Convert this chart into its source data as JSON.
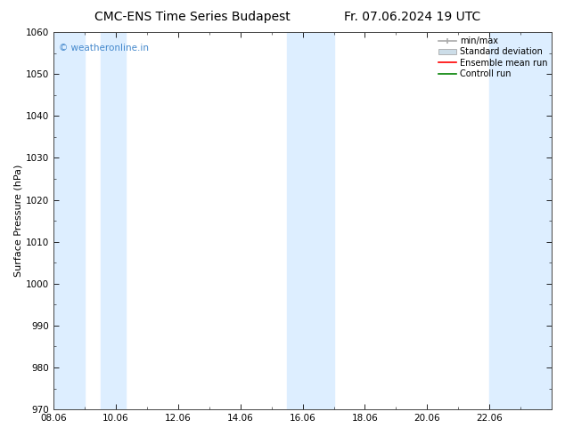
{
  "title_left": "CMC-ENS Time Series Budapest",
  "title_right": "Fr. 07.06.2024 19 UTC",
  "ylabel": "Surface Pressure (hPa)",
  "ylim": [
    970,
    1060
  ],
  "yticks": [
    970,
    980,
    990,
    1000,
    1010,
    1020,
    1030,
    1040,
    1050,
    1060
  ],
  "xlim": [
    0,
    16
  ],
  "xtick_labels": [
    "08.06",
    "10.06",
    "12.06",
    "14.06",
    "16.06",
    "18.06",
    "20.06",
    "22.06"
  ],
  "xtick_positions": [
    0,
    2,
    4,
    6,
    8,
    10,
    12,
    14
  ],
  "watermark": "© weatheronline.in",
  "watermark_color": "#4488cc",
  "shaded_bands": [
    {
      "x_start": 0.0,
      "x_end": 1.0
    },
    {
      "x_start": 1.5,
      "x_end": 2.5
    },
    {
      "x_start": 7.5,
      "x_end": 8.5
    },
    {
      "x_start": 8.5,
      "x_end": 9.5
    },
    {
      "x_start": 14.0,
      "x_end": 15.0
    },
    {
      "x_start": 15.0,
      "x_end": 16.0
    }
  ],
  "band_color": "#ddeeff",
  "legend_items": [
    {
      "label": "min/max"
    },
    {
      "label": "Standard deviation"
    },
    {
      "label": "Ensemble mean run"
    },
    {
      "label": "Controll run"
    }
  ],
  "minmax_color": "#aaaaaa",
  "std_color": "#ccdde8",
  "ens_color": "red",
  "ctrl_color": "green",
  "background_color": "#ffffff",
  "spine_color": "#444444",
  "title_fontsize": 10,
  "tick_fontsize": 7.5,
  "ylabel_fontsize": 8,
  "legend_fontsize": 7
}
